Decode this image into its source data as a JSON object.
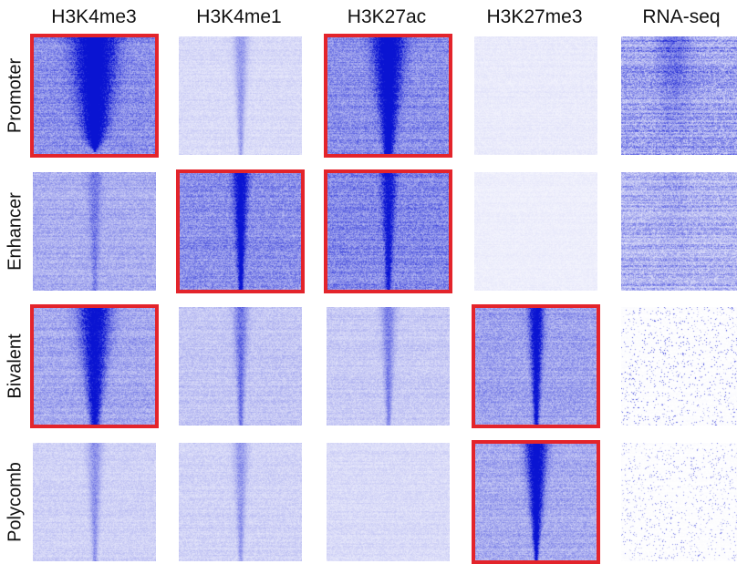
{
  "columns": [
    {
      "label": "H3K4me3"
    },
    {
      "label": "H3K4me1"
    },
    {
      "label": "H3K27ac"
    },
    {
      "label": "H3K27me3"
    },
    {
      "label": "RNA-seq"
    }
  ],
  "rows": [
    {
      "label": "Promoter"
    },
    {
      "label": "Enhancer"
    },
    {
      "label": "Bivalent"
    },
    {
      "label": "Polycomb"
    }
  ],
  "colors": {
    "signal": "#0a14d2",
    "highlight": "#e3242b",
    "background": "#ffffff"
  },
  "panels": [
    [
      {
        "background": 0.55,
        "peak": 1.0,
        "width": "wide",
        "highlighted": true
      },
      {
        "background": 0.18,
        "peak": 0.3,
        "width": "narrow",
        "highlighted": false
      },
      {
        "background": 0.55,
        "peak": 0.95,
        "width": "medium",
        "highlighted": true
      },
      {
        "background": 0.1,
        "peak": 0.05,
        "width": "none",
        "highlighted": false
      },
      {
        "background": 0.55,
        "peak": 0.35,
        "width": "noisy",
        "highlighted": false
      }
    ],
    [
      {
        "background": 0.4,
        "peak": 0.25,
        "width": "narrow",
        "highlighted": false
      },
      {
        "background": 0.55,
        "peak": 0.85,
        "width": "narrow",
        "highlighted": true
      },
      {
        "background": 0.58,
        "peak": 0.7,
        "width": "narrow",
        "highlighted": true
      },
      {
        "background": 0.08,
        "peak": 0.03,
        "width": "none",
        "highlighted": false
      },
      {
        "background": 0.45,
        "peak": 0.1,
        "width": "noisy",
        "highlighted": false
      }
    ],
    [
      {
        "background": 0.42,
        "peak": 0.9,
        "width": "medium",
        "highlighted": true
      },
      {
        "background": 0.28,
        "peak": 0.4,
        "width": "narrow",
        "highlighted": false
      },
      {
        "background": 0.26,
        "peak": 0.35,
        "width": "narrow",
        "highlighted": false
      },
      {
        "background": 0.45,
        "peak": 0.9,
        "width": "narrow",
        "highlighted": true
      },
      {
        "background": 0.1,
        "peak": 0.05,
        "width": "sparse",
        "highlighted": false
      }
    ],
    [
      {
        "background": 0.22,
        "peak": 0.3,
        "width": "narrow",
        "highlighted": false
      },
      {
        "background": 0.22,
        "peak": 0.28,
        "width": "narrow",
        "highlighted": false
      },
      {
        "background": 0.18,
        "peak": 0.05,
        "width": "none",
        "highlighted": false
      },
      {
        "background": 0.4,
        "peak": 1.0,
        "width": "thin",
        "highlighted": true
      },
      {
        "background": 0.06,
        "peak": 0.03,
        "width": "sparse",
        "highlighted": false
      }
    ]
  ]
}
